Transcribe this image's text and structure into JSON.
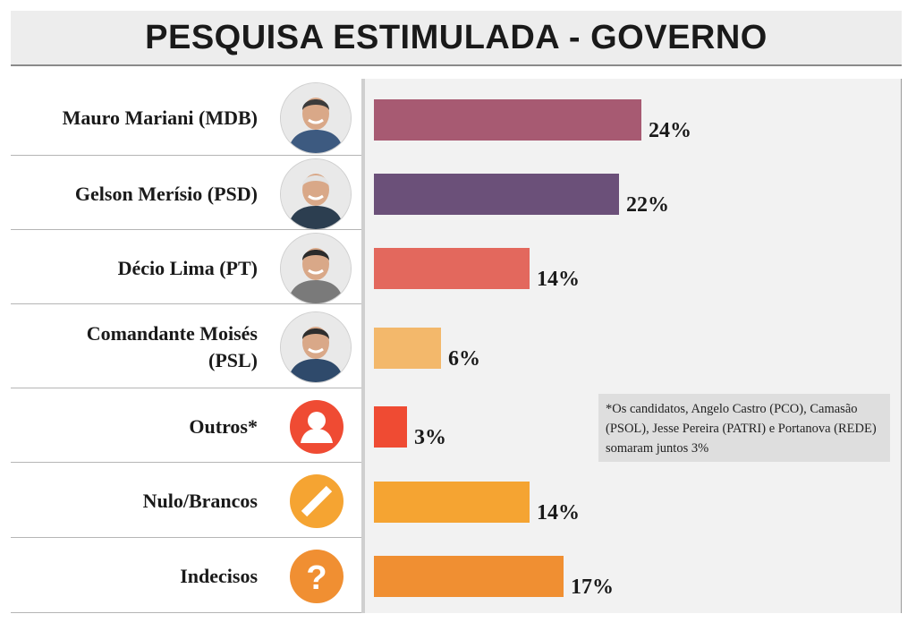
{
  "title": "PESQUISA ESTIMULADA - GOVERNO",
  "note": "*Os candidatos, Angelo Castro (PCO), Camasão (PSOL), Jesse Pereira (PATRI) e Portanova (REDE) somaram juntos 3%",
  "colors": {
    "mariani": "#a75a72",
    "merisio": "#6b5079",
    "decio": "#e3685d",
    "moises": "#f3b86b",
    "outros": "#ef4b33",
    "nulo": "#f5a432",
    "indecisos": "#f08f32"
  },
  "icons": [
    "person-photo",
    "person-photo",
    "person-photo",
    "person-photo",
    "user-icon",
    "slash-icon",
    "question-icon"
  ],
  "rows": [
    {
      "label": "Mauro Mariani (MDB)",
      "value_label": "24%"
    },
    {
      "label": "Gelson Merísio (PSD)",
      "value_label": "22%"
    },
    {
      "label": "Décio Lima (PT)",
      "value_label": "14%"
    },
    {
      "label": "Comandante Moisés (PSL)",
      "value_label": "6%"
    },
    {
      "label": "Outros*",
      "value_label": "3%"
    },
    {
      "label": "Nulo/Brancos",
      "value_label": "14%"
    },
    {
      "label": "Indecisos",
      "value_label": "17%"
    }
  ],
  "chart_data": {
    "type": "bar",
    "orientation": "horizontal",
    "title": "PESQUISA ESTIMULADA - GOVERNO",
    "categories": [
      "Mauro Mariani (MDB)",
      "Gelson Merísio (PSD)",
      "Décio Lima (PT)",
      "Comandante Moisés (PSL)",
      "Outros*",
      "Nulo/Brancos",
      "Indecisos"
    ],
    "values": [
      24,
      22,
      14,
      6,
      3,
      14,
      17
    ],
    "unit": "%"
  }
}
